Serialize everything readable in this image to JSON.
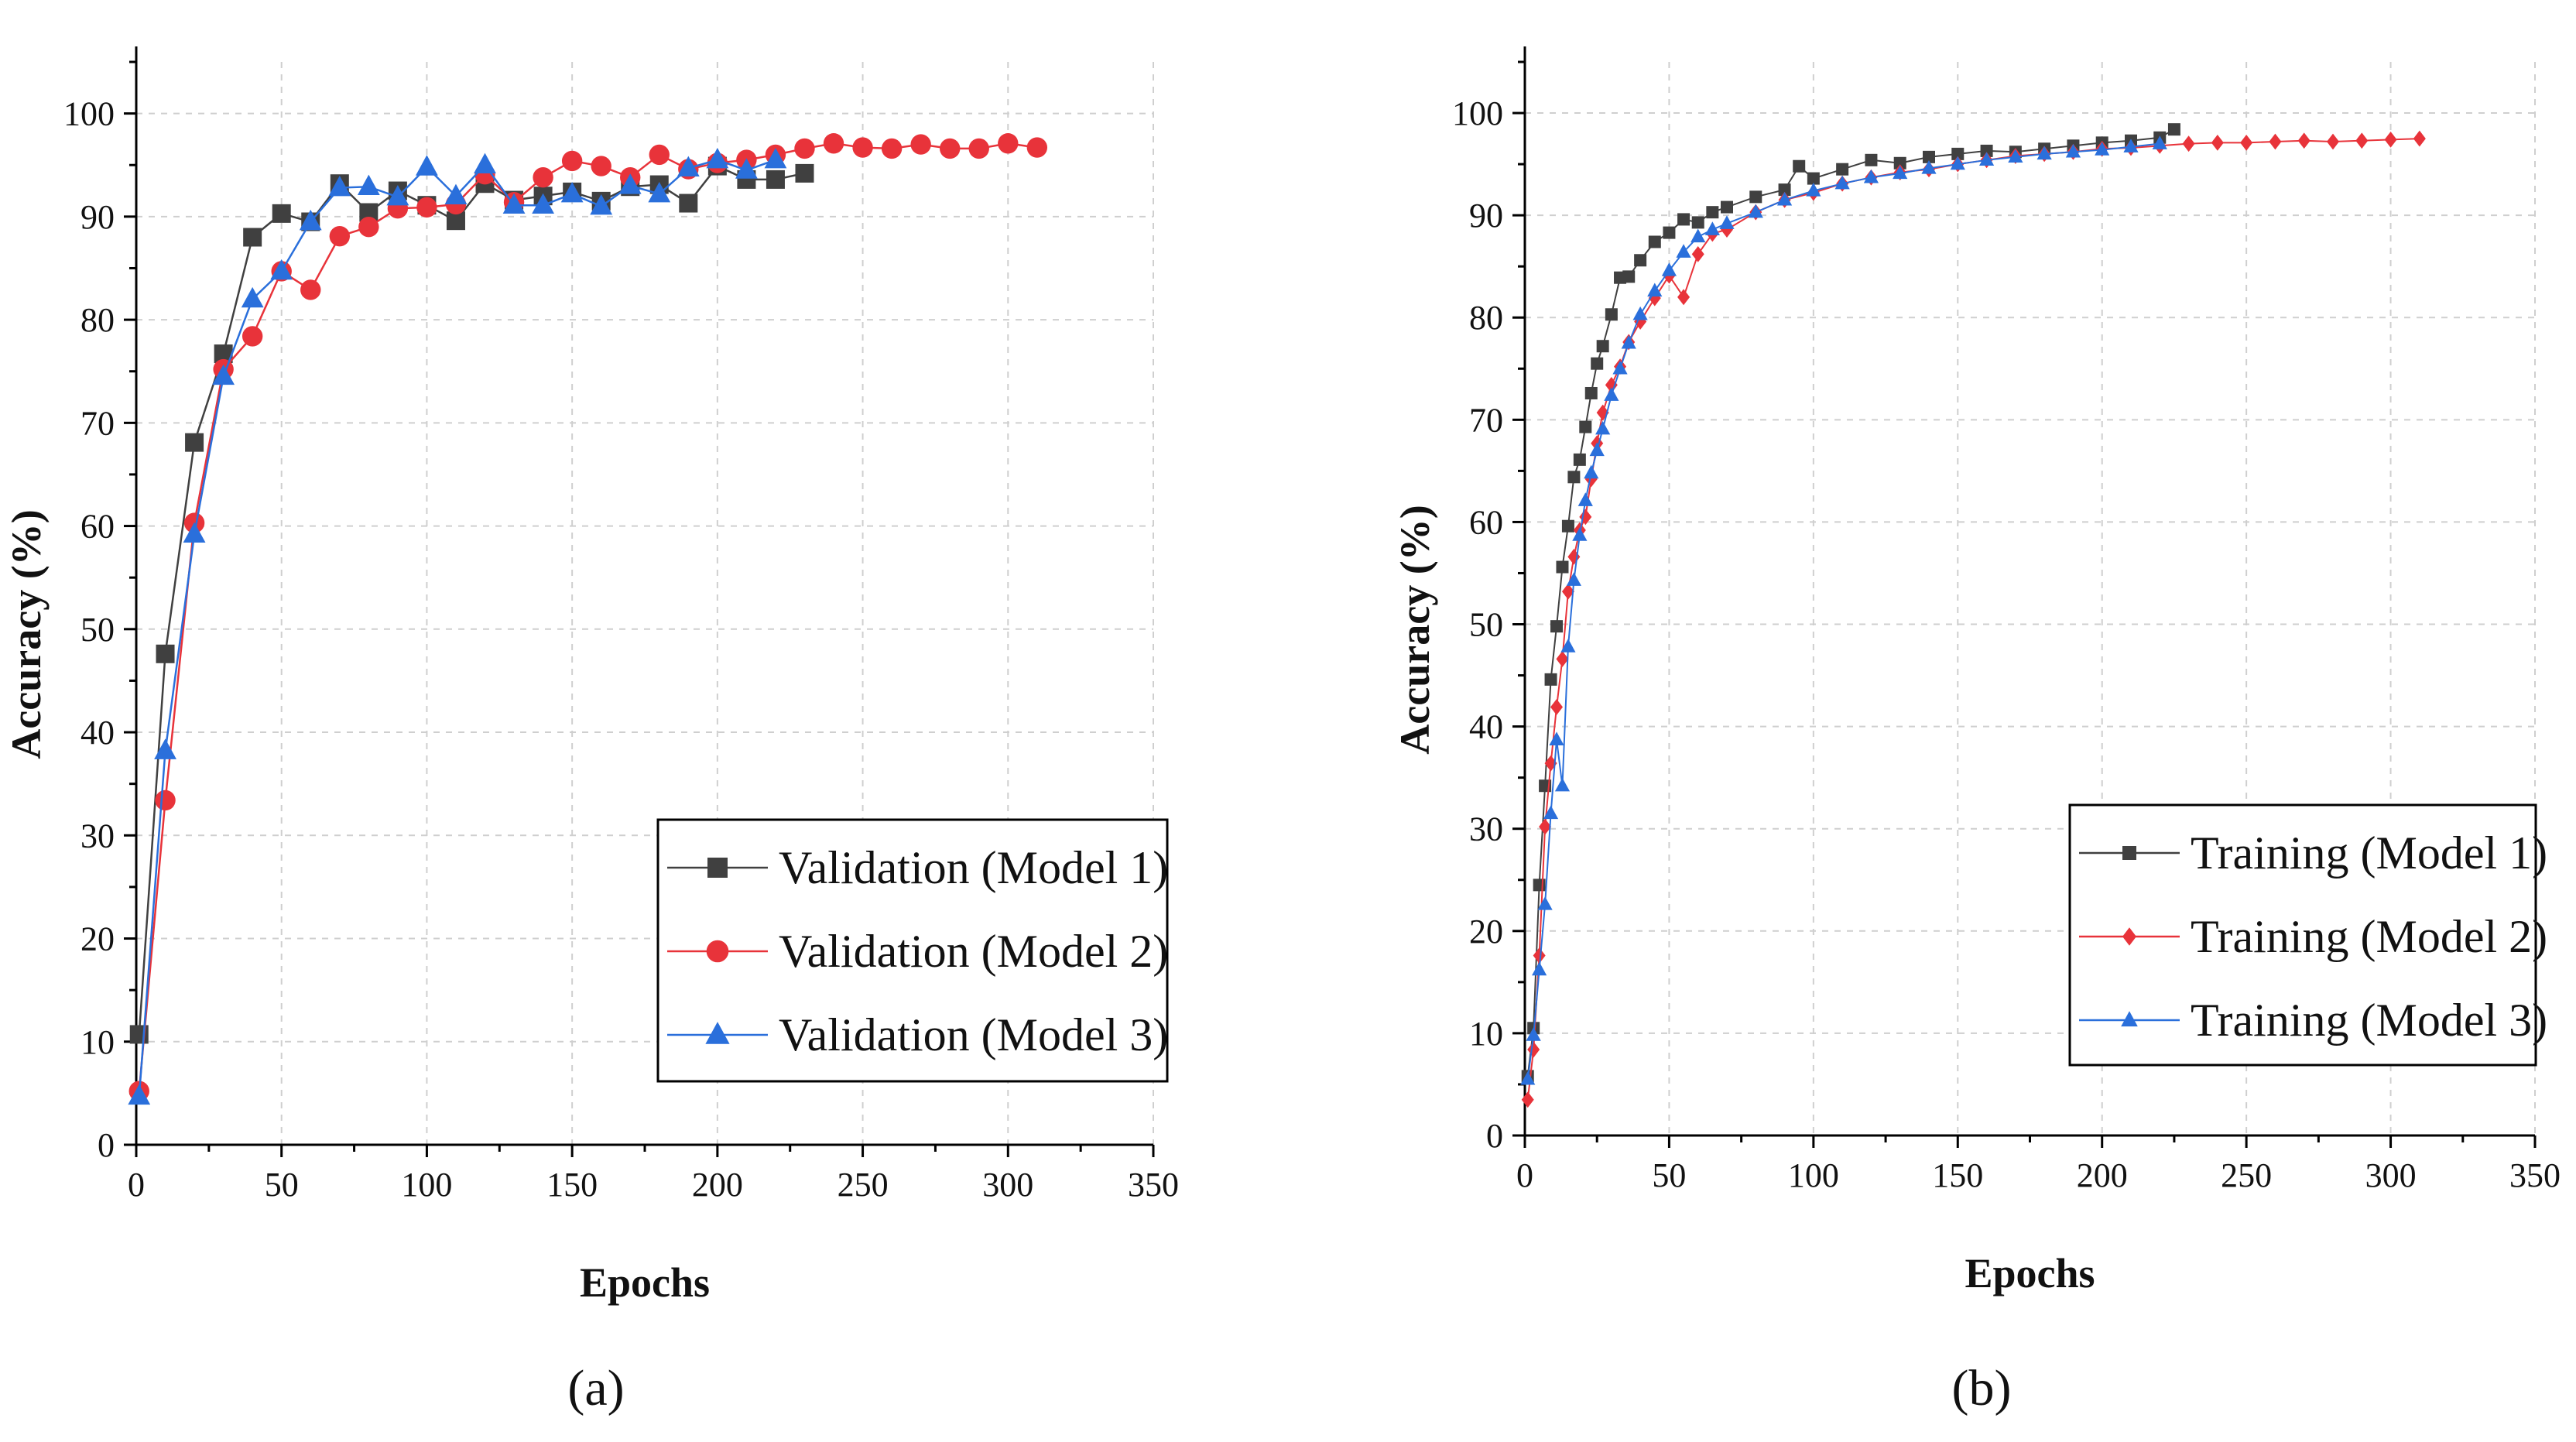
{
  "figure": {
    "panel_captions": [
      "(a)",
      "(b)"
    ]
  },
  "chart_data": [
    {
      "type": "line",
      "panel": "(a)",
      "title": "",
      "xlabel": "Epochs",
      "ylabel": "Accuracy (%)",
      "xlim": [
        0,
        350
      ],
      "ylim": [
        0,
        105
      ],
      "xticks": [
        0,
        50,
        100,
        150,
        200,
        250,
        300,
        350
      ],
      "yticks": [
        0,
        10,
        20,
        30,
        40,
        50,
        60,
        70,
        80,
        90,
        100
      ],
      "grid": true,
      "legend_position": "bottom-right",
      "series": [
        {
          "name": "Validation (Model 1)",
          "color": "#404040",
          "marker": "square",
          "x": [
            1,
            10,
            20,
            30,
            40,
            50,
            60,
            70,
            80,
            90,
            100,
            110,
            120,
            130,
            140,
            150,
            160,
            170,
            180,
            190,
            200,
            210,
            220,
            230
          ],
          "y": [
            10.7,
            47.6,
            68.1,
            76.7,
            88.0,
            90.3,
            89.5,
            93.2,
            90.4,
            92.5,
            91.1,
            89.6,
            93.2,
            91.6,
            92.0,
            92.4,
            91.5,
            92.9,
            93.1,
            91.3,
            94.9,
            93.6,
            93.6,
            94.2
          ]
        },
        {
          "name": "Validation (Model 2)",
          "color": "#e8333a",
          "marker": "circle",
          "x": [
            1,
            10,
            20,
            30,
            40,
            50,
            60,
            70,
            80,
            90,
            100,
            110,
            120,
            130,
            140,
            150,
            160,
            170,
            180,
            190,
            200,
            210,
            220,
            230,
            240,
            250,
            260,
            270,
            280,
            290,
            300,
            310
          ],
          "y": [
            5.2,
            33.4,
            60.3,
            75.2,
            78.4,
            84.7,
            82.9,
            88.1,
            89.0,
            90.8,
            90.9,
            91.2,
            94.1,
            91.4,
            93.8,
            95.4,
            94.9,
            93.8,
            96.0,
            94.6,
            95.2,
            95.5,
            96.0,
            96.6,
            97.1,
            96.7,
            96.6,
            97.0,
            96.6,
            96.6,
            97.1,
            96.7
          ]
        },
        {
          "name": "Validation (Model 3)",
          "color": "#2a6fdb",
          "marker": "triangle",
          "x": [
            1,
            10,
            20,
            30,
            40,
            50,
            60,
            70,
            80,
            90,
            100,
            110,
            120,
            130,
            140,
            150,
            160,
            170,
            180,
            190,
            200,
            210,
            220
          ],
          "y": [
            4.7,
            38.2,
            59.2,
            74.5,
            82.0,
            84.7,
            89.5,
            92.8,
            92.9,
            91.9,
            94.8,
            92.0,
            95.0,
            91.1,
            91.1,
            92.2,
            91.0,
            93.0,
            92.2,
            94.7,
            95.5,
            94.5,
            95.5
          ]
        }
      ]
    },
    {
      "type": "line",
      "panel": "(b)",
      "title": "",
      "xlabel": "Epochs",
      "ylabel": "Accuracy (%)",
      "xlim": [
        0,
        350
      ],
      "ylim": [
        0,
        105
      ],
      "xticks": [
        0,
        50,
        100,
        150,
        200,
        250,
        300,
        350
      ],
      "yticks": [
        0,
        10,
        20,
        30,
        40,
        50,
        60,
        70,
        80,
        90,
        100
      ],
      "grid": true,
      "legend_position": "bottom-right",
      "series": [
        {
          "name": "Training (Model 1)",
          "color": "#404040",
          "marker": "square",
          "x": [
            1,
            3,
            5,
            7,
            9,
            11,
            13,
            15,
            17,
            19,
            21,
            23,
            25,
            27,
            30,
            33,
            36,
            40,
            45,
            50,
            55,
            60,
            65,
            70,
            80,
            90,
            95,
            100,
            110,
            120,
            130,
            140,
            150,
            160,
            170,
            180,
            190,
            200,
            210,
            220,
            225
          ],
          "y": [
            5.8,
            10.5,
            24.5,
            34.2,
            44.6,
            49.8,
            55.6,
            59.6,
            64.4,
            66.1,
            69.3,
            72.6,
            75.5,
            77.2,
            80.3,
            83.9,
            84.0,
            85.6,
            87.4,
            88.3,
            89.6,
            89.3,
            90.3,
            90.8,
            91.8,
            92.5,
            94.8,
            93.6,
            94.5,
            95.4,
            95.1,
            95.7,
            96.0,
            96.3,
            96.2,
            96.5,
            96.8,
            97.1,
            97.3,
            97.6,
            98.4
          ]
        },
        {
          "name": "Training (Model 2)",
          "color": "#e8333a",
          "marker": "diamond",
          "x": [
            1,
            3,
            5,
            7,
            9,
            11,
            13,
            15,
            17,
            19,
            21,
            23,
            25,
            27,
            30,
            33,
            36,
            40,
            45,
            50,
            55,
            60,
            65,
            70,
            80,
            90,
            100,
            110,
            120,
            130,
            140,
            150,
            160,
            170,
            180,
            190,
            200,
            210,
            220,
            230,
            240,
            250,
            260,
            270,
            280,
            290,
            300,
            310
          ],
          "y": [
            3.5,
            8.4,
            17.6,
            30.2,
            36.4,
            41.9,
            46.6,
            53.2,
            56.6,
            59.2,
            60.5,
            64.2,
            67.7,
            70.7,
            73.4,
            75.2,
            77.6,
            79.6,
            81.9,
            84.1,
            82.0,
            86.2,
            88.2,
            88.6,
            90.3,
            91.5,
            92.2,
            93.1,
            93.7,
            94.2,
            94.5,
            95.0,
            95.4,
            95.8,
            96.0,
            96.2,
            96.5,
            96.6,
            96.8,
            97.0,
            97.1,
            97.1,
            97.2,
            97.3,
            97.2,
            97.3,
            97.4,
            97.5
          ]
        },
        {
          "name": "Training (Model 3)",
          "color": "#2a6fdb",
          "marker": "triangle",
          "x": [
            1,
            3,
            5,
            7,
            9,
            11,
            13,
            15,
            17,
            19,
            21,
            23,
            25,
            27,
            30,
            33,
            36,
            40,
            45,
            50,
            55,
            60,
            65,
            70,
            80,
            90,
            100,
            110,
            120,
            130,
            140,
            150,
            160,
            170,
            180,
            190,
            200,
            210,
            220
          ],
          "y": [
            5.5,
            9.8,
            16.2,
            22.6,
            31.5,
            38.7,
            34.2,
            47.8,
            54.3,
            58.7,
            62.1,
            64.8,
            67.0,
            69.1,
            72.4,
            75.0,
            77.5,
            80.3,
            82.6,
            84.6,
            86.4,
            87.9,
            88.6,
            89.2,
            90.3,
            91.5,
            92.4,
            93.1,
            93.7,
            94.1,
            94.6,
            95.0,
            95.4,
            95.7,
            96.0,
            96.2,
            96.4,
            96.7,
            97.0
          ]
        }
      ]
    }
  ]
}
